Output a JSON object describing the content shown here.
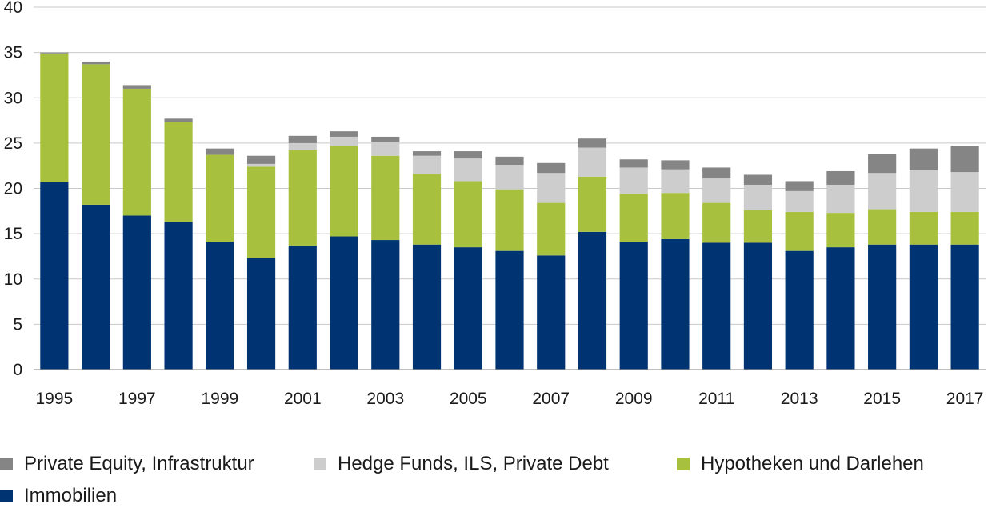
{
  "chart_data": {
    "type": "bar",
    "stacked": true,
    "title": "",
    "xlabel": "",
    "ylabel": "",
    "ylim": [
      0,
      40
    ],
    "yticks": [
      0,
      5,
      10,
      15,
      20,
      25,
      30,
      35,
      40
    ],
    "grid": "horizontal",
    "legend_position": "bottom",
    "categories": [
      "1995",
      "1996",
      "1997",
      "1998",
      "1999",
      "2000",
      "2001",
      "2002",
      "2003",
      "2004",
      "2005",
      "2006",
      "2007",
      "2008",
      "2009",
      "2010",
      "2011",
      "2012",
      "2013",
      "2014",
      "2015",
      "2016",
      "2017"
    ],
    "x_tick_labels": [
      "1995",
      "",
      "1997",
      "",
      "1999",
      "",
      "2001",
      "",
      "2003",
      "",
      "2005",
      "",
      "2007",
      "",
      "2009",
      "",
      "2011",
      "",
      "2013",
      "",
      "2015",
      "",
      "2017"
    ],
    "series": [
      {
        "name": "Immobilien",
        "color": "#003372",
        "values": [
          20.7,
          18.2,
          17.0,
          16.3,
          14.1,
          12.3,
          13.7,
          14.7,
          14.3,
          13.8,
          13.5,
          13.1,
          12.6,
          15.2,
          14.1,
          14.4,
          14.0,
          14.0,
          13.1,
          13.5,
          13.8,
          13.8,
          13.8
        ]
      },
      {
        "name": "Hypotheken und Darlehen",
        "color": "#a7c13f",
        "values": [
          14.2,
          15.5,
          14.0,
          11.0,
          9.6,
          10.1,
          10.5,
          10.0,
          9.3,
          7.8,
          7.3,
          6.8,
          5.8,
          6.1,
          5.3,
          5.1,
          4.4,
          3.6,
          4.3,
          3.8,
          3.9,
          3.6,
          3.6
        ]
      },
      {
        "name": "Hedge Funds, ILS, Private Debt",
        "color": "#cdcdcd",
        "values": [
          0.0,
          0.0,
          0.0,
          0.0,
          0.0,
          0.3,
          0.8,
          1.0,
          1.5,
          2.0,
          2.5,
          2.7,
          3.3,
          3.2,
          2.9,
          2.6,
          2.7,
          2.8,
          2.3,
          3.1,
          4.0,
          4.6,
          4.4
        ]
      },
      {
        "name": "Private Equity, Infrastruktur",
        "color": "#858585",
        "values": [
          0.1,
          0.3,
          0.4,
          0.4,
          0.7,
          0.9,
          0.8,
          0.6,
          0.6,
          0.5,
          0.8,
          0.9,
          1.1,
          1.0,
          0.9,
          1.0,
          1.2,
          1.1,
          1.1,
          1.5,
          2.1,
          2.4,
          2.9
        ]
      }
    ]
  },
  "legend": {
    "items": [
      {
        "label": "Private Equity, Infrastruktur",
        "color": "#858585"
      },
      {
        "label": "Hedge Funds, ILS, Private Debt",
        "color": "#cdcdcd"
      },
      {
        "label": "Hypotheken und Darlehen",
        "color": "#a7c13f"
      },
      {
        "label": "Immobilien",
        "color": "#003372"
      }
    ]
  }
}
